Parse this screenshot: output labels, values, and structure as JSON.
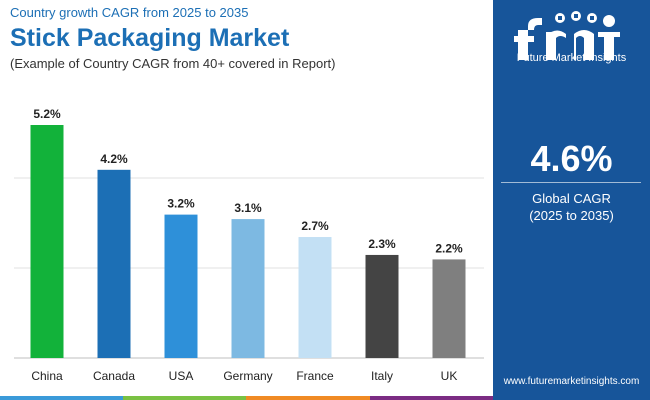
{
  "header": {
    "subtitle": "Country growth CAGR from 2025 to 2035",
    "title": "Stick Packaging Market",
    "description": "(Example of Country CAGR from 40+ covered in Report)"
  },
  "chart_data": {
    "type": "bar",
    "categories": [
      "China",
      "Canada",
      "USA",
      "Germany",
      "France",
      "Italy",
      "UK"
    ],
    "values": [
      5.2,
      4.2,
      3.2,
      3.1,
      2.7,
      2.3,
      2.2
    ],
    "value_labels": [
      "5.2%",
      "4.2%",
      "3.2%",
      "3.1%",
      "2.7%",
      "2.3%",
      "2.2%"
    ],
    "colors": [
      "#12b23a",
      "#1c6fb5",
      "#2e90d9",
      "#7db9e2",
      "#c3e0f4",
      "#444444",
      "#7f7f7f"
    ],
    "ylim": [
      0,
      5.2
    ],
    "grid": true,
    "legend": "none"
  },
  "side_panel": {
    "logo_text": "Future Market Insights",
    "global_value": "4.6%",
    "global_label_line1": "Global CAGR",
    "global_label_line2": "(2025 to 2035)",
    "website": "www.futuremarketinsights.com",
    "background": "#17559a"
  },
  "bottom_bar_colors": [
    "#3a9ad9",
    "#7ac143",
    "#f08a24",
    "#7b2c83"
  ]
}
